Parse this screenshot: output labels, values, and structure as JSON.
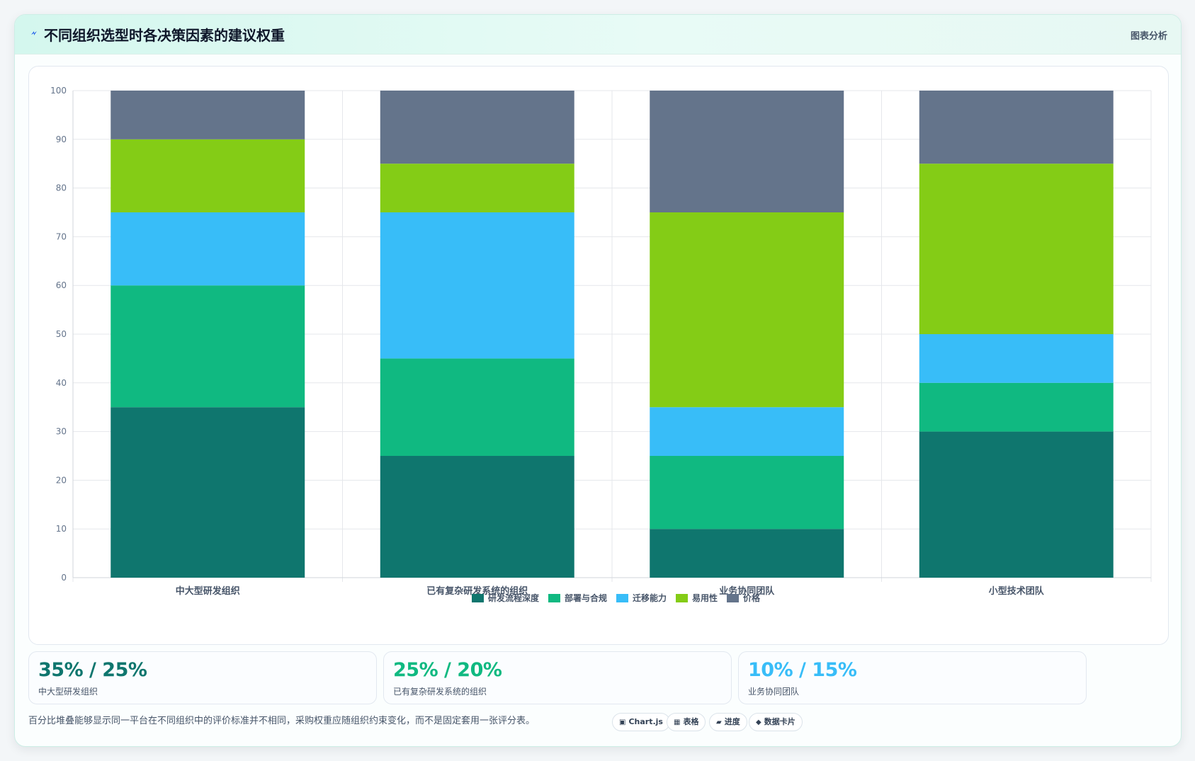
{
  "header": {
    "title": "不同组织选型时各决策因素的建议权重",
    "right_label": "图表分析"
  },
  "chart_data": {
    "type": "bar",
    "stacked": true,
    "categories": [
      "中大型研发组织",
      "已有复杂研发系统的组织",
      "业务协同团队",
      "小型技术团队"
    ],
    "series": [
      {
        "name": "研发流程深度",
        "color": "#0f766e",
        "values": [
          35,
          25,
          10,
          30
        ]
      },
      {
        "name": "部署与合规",
        "color": "#10b981",
        "values": [
          25,
          20,
          15,
          10
        ]
      },
      {
        "name": "迁移能力",
        "color": "#38bdf8",
        "values": [
          15,
          30,
          10,
          10
        ]
      },
      {
        "name": "易用性",
        "color": "#84cc16",
        "values": [
          15,
          10,
          40,
          35
        ]
      },
      {
        "name": "价格",
        "color": "#64748b",
        "values": [
          10,
          15,
          25,
          15
        ]
      }
    ],
    "ylim": [
      0,
      100
    ],
    "yticks": [
      0,
      10,
      20,
      30,
      40,
      50,
      60,
      70,
      80,
      90,
      100
    ],
    "grid": true,
    "legend": "bottom"
  },
  "stats": [
    {
      "value": "35% / 25%",
      "label": "中大型研发组织",
      "color": "#0f766e"
    },
    {
      "value": "25% / 20%",
      "label": "已有复杂研发系统的组织",
      "color": "#10b981"
    },
    {
      "value": "10% / 15%",
      "label": "业务协同团队",
      "color": "#38bdf8"
    }
  ],
  "footer": {
    "text": "百分比堆叠能够显示同一平台在不同组织中的评价标准并不相同，采购权重应随组织约束变化，而不是固定套用一张评分表。",
    "pills": [
      {
        "icon": "▣",
        "icon_name": "chart-icon",
        "label": "Chart.js"
      },
      {
        "icon": "▦",
        "icon_name": "table-icon",
        "label": "表格"
      },
      {
        "icon": "▰",
        "icon_name": "progress-icon",
        "label": "进度"
      },
      {
        "icon": "◆",
        "icon_name": "diamond-icon",
        "label": "数据卡片"
      }
    ]
  }
}
